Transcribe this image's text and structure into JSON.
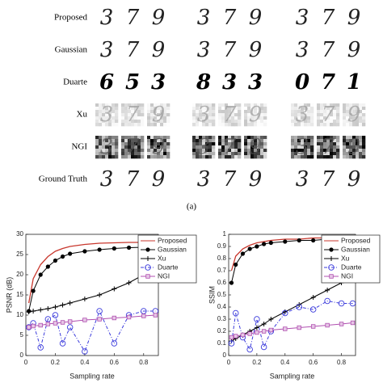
{
  "figure": {
    "rows": [
      {
        "label": "Proposed",
        "digits": [
          [
            "3",
            "7",
            "9"
          ],
          [
            "3",
            "7",
            "9"
          ],
          [
            "3",
            "7",
            "9"
          ]
        ]
      },
      {
        "label": "Gaussian",
        "digits": [
          [
            "3",
            "7",
            "9"
          ],
          [
            "3",
            "7",
            "9"
          ],
          [
            "3",
            "7",
            "9"
          ]
        ]
      },
      {
        "label": "Duarte",
        "digits": [
          [
            "6",
            "5",
            "3"
          ],
          [
            "8",
            "3",
            "3"
          ],
          [
            "0",
            "7",
            "1"
          ]
        ]
      },
      {
        "label": "Xu",
        "digits": [
          [
            "3",
            "7",
            "9"
          ],
          [
            "3",
            "7",
            "9"
          ],
          [
            "3",
            "7",
            "9"
          ]
        ]
      },
      {
        "label": "NGI",
        "digits": [
          [
            "3",
            "7",
            "9"
          ],
          [
            "3",
            "7",
            "9"
          ],
          [
            "3",
            "7",
            "9"
          ]
        ]
      },
      {
        "label": "Ground Truth",
        "digits": [
          [
            "3",
            "7",
            "9"
          ],
          [
            "3",
            "7",
            "9"
          ],
          [
            "3",
            "7",
            "9"
          ]
        ]
      }
    ],
    "caption": "(a)"
  },
  "chart_data": [
    {
      "type": "line",
      "xlabel": "Sampling rate",
      "ylabel": "PSNR (dB)",
      "x": [
        0.02,
        0.05,
        0.1,
        0.15,
        0.2,
        0.25,
        0.3,
        0.4,
        0.5,
        0.6,
        0.7,
        0.8,
        0.88
      ],
      "xlim": [
        0,
        0.9
      ],
      "xticks": [
        0,
        0.2,
        0.4,
        0.6,
        0.8
      ],
      "ylim": [
        0,
        30
      ],
      "yticks": [
        0,
        5,
        10,
        15,
        20,
        25,
        30
      ],
      "legend": "upper right",
      "series": [
        {
          "name": "Proposed",
          "color": "#c8372d",
          "marker": "none",
          "dash": "solid",
          "values": [
            13,
            19,
            22.5,
            24.5,
            25.8,
            26.5,
            27,
            27.5,
            27.8,
            27.9,
            28,
            28,
            28
          ]
        },
        {
          "name": "Gaussian",
          "color": "#000000",
          "marker": "filled-circle",
          "dash": "solid",
          "values": [
            11,
            16,
            20,
            22,
            23.5,
            24.5,
            25.2,
            25.8,
            26.2,
            26.5,
            26.7,
            26.8,
            27
          ]
        },
        {
          "name": "Xu",
          "color": "#000000",
          "marker": "plus",
          "dash": "solid",
          "values": [
            10.8,
            11,
            11.3,
            11.6,
            12,
            12.5,
            13,
            14,
            15,
            16.5,
            18,
            20,
            22
          ]
        },
        {
          "name": "Duarte",
          "color": "#3b3bdc",
          "marker": "circle",
          "dash": "dashdot",
          "values": [
            7,
            8,
            2,
            9,
            10,
            3,
            7,
            1,
            11,
            3,
            10,
            11,
            11
          ]
        },
        {
          "name": "NGI",
          "color": "#b04fb0",
          "marker": "square",
          "dash": "solid",
          "values": [
            7,
            7.3,
            7.5,
            7.8,
            8,
            8.2,
            8.4,
            8.8,
            9,
            9.3,
            9.5,
            9.8,
            10
          ]
        }
      ]
    },
    {
      "type": "line",
      "xlabel": "Sampling rate",
      "ylabel": "SSIM",
      "x": [
        0.02,
        0.05,
        0.1,
        0.15,
        0.2,
        0.25,
        0.3,
        0.4,
        0.5,
        0.6,
        0.7,
        0.8,
        0.88
      ],
      "xlim": [
        0,
        0.9
      ],
      "xticks": [
        0,
        0.2,
        0.4,
        0.6,
        0.8
      ],
      "ylim": [
        0,
        1
      ],
      "yticks": [
        0,
        0.1,
        0.2,
        0.3,
        0.4,
        0.5,
        0.6,
        0.7,
        0.8,
        0.9,
        1
      ],
      "legend": "upper right",
      "series": [
        {
          "name": "Proposed",
          "color": "#c8372d",
          "marker": "none",
          "dash": "solid",
          "values": [
            0.7,
            0.82,
            0.88,
            0.91,
            0.93,
            0.94,
            0.95,
            0.96,
            0.96,
            0.97,
            0.97,
            0.97,
            0.97
          ]
        },
        {
          "name": "Gaussian",
          "color": "#000000",
          "marker": "filled-circle",
          "dash": "solid",
          "values": [
            0.6,
            0.75,
            0.84,
            0.88,
            0.9,
            0.92,
            0.93,
            0.94,
            0.95,
            0.95,
            0.96,
            0.96,
            0.96
          ]
        },
        {
          "name": "Xu",
          "color": "#000000",
          "marker": "plus",
          "dash": "solid",
          "values": [
            0.12,
            0.14,
            0.17,
            0.2,
            0.23,
            0.26,
            0.3,
            0.36,
            0.42,
            0.48,
            0.54,
            0.6,
            0.63
          ]
        },
        {
          "name": "Duarte",
          "color": "#3b3bdc",
          "marker": "circle",
          "dash": "dashdot",
          "values": [
            0.1,
            0.35,
            0.15,
            0.05,
            0.3,
            0.07,
            0.2,
            0.35,
            0.4,
            0.38,
            0.45,
            0.43,
            0.43
          ]
        },
        {
          "name": "NGI",
          "color": "#b04fb0",
          "marker": "square",
          "dash": "solid",
          "values": [
            0.15,
            0.16,
            0.17,
            0.18,
            0.19,
            0.2,
            0.21,
            0.22,
            0.23,
            0.24,
            0.25,
            0.26,
            0.27
          ]
        }
      ]
    }
  ]
}
